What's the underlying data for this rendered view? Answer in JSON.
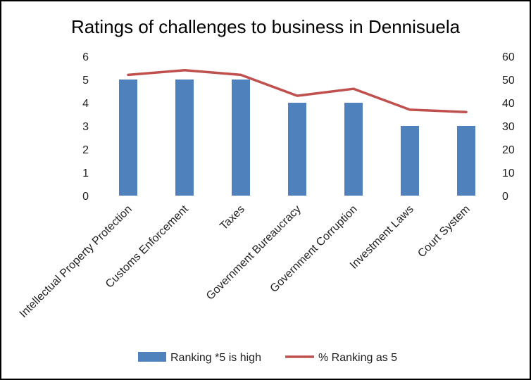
{
  "chart_data": {
    "type": "bar",
    "title": "Ratings of challenges to business  in Dennisuela",
    "categories": [
      "Intellectual Property Protection",
      "Customs Enforcement",
      "Taxes",
      "Government Bureaucracy",
      "Government Corruption",
      "Investment Laws",
      "Court System"
    ],
    "series": [
      {
        "name": "Ranking *5 is high",
        "type": "bar",
        "axis": "left",
        "color": "#4F81BD",
        "values": [
          5,
          5,
          5,
          4,
          4,
          3,
          3
        ]
      },
      {
        "name": "% Ranking as 5",
        "type": "line",
        "axis": "right",
        "color": "#C0504D",
        "values": [
          52,
          54,
          52,
          43,
          46,
          37,
          36
        ]
      }
    ],
    "ylim_left": [
      0,
      6
    ],
    "yticks_left": [
      "0",
      "1",
      "2",
      "3",
      "4",
      "5",
      "6"
    ],
    "ylim_right": [
      0,
      60
    ],
    "yticks_right": [
      "0",
      "10",
      "20",
      "30",
      "40",
      "50",
      "60"
    ],
    "xlabel": "",
    "ylabel": "",
    "grid": false,
    "legend": "bottom"
  }
}
